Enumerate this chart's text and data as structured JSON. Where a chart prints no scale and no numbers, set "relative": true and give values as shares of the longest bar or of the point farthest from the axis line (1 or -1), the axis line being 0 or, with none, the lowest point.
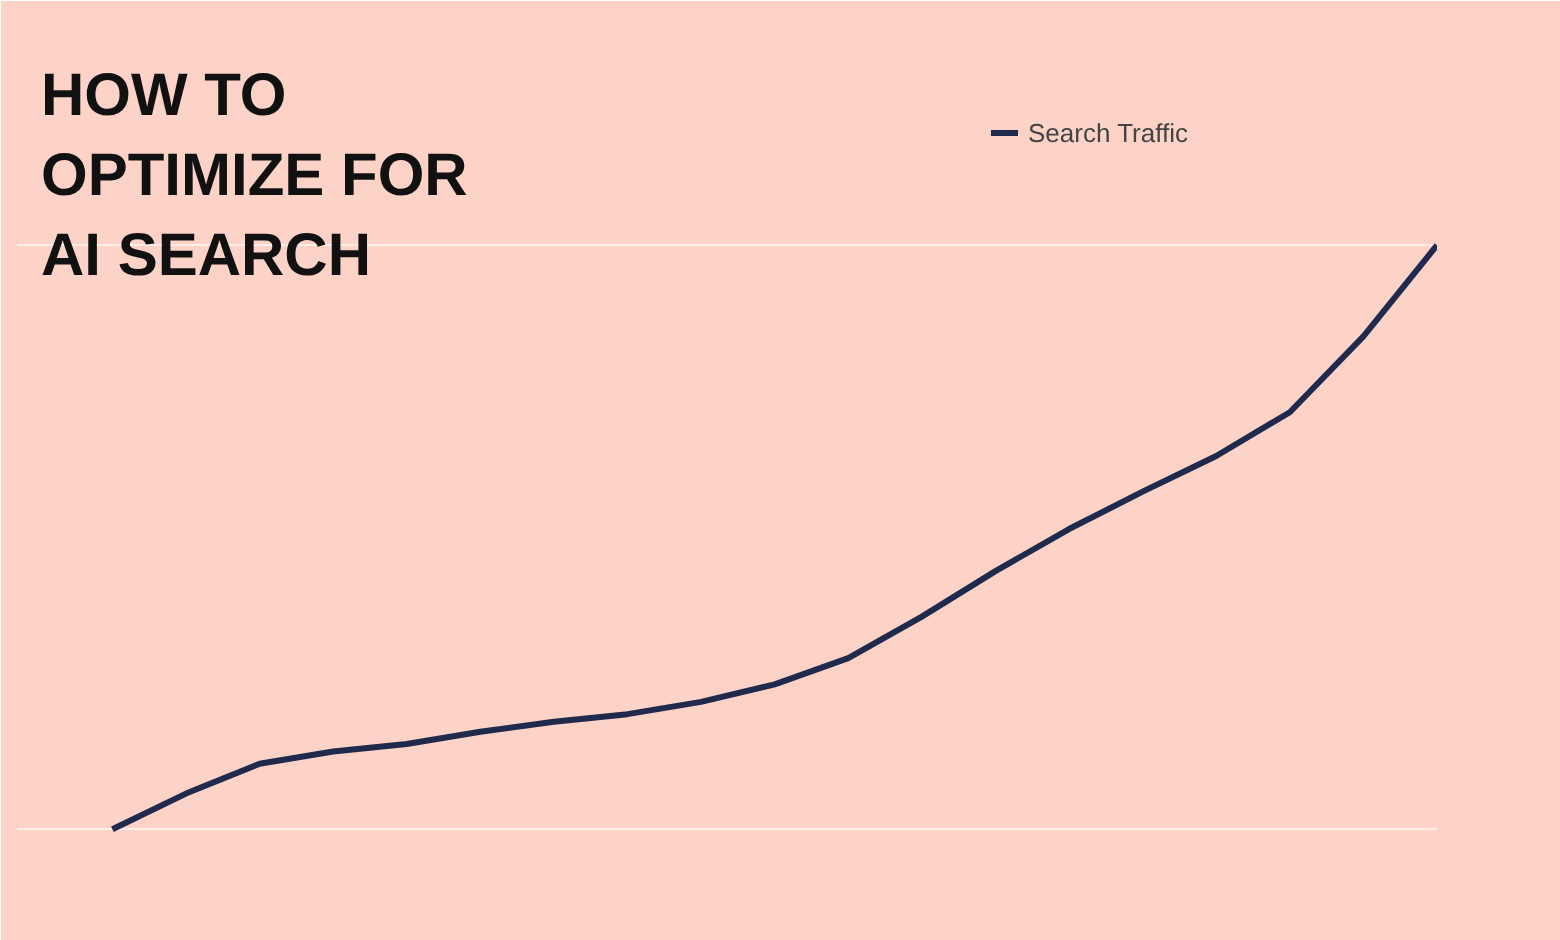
{
  "chart_data": {
    "type": "line",
    "title": "HOW TO OPTIMIZE FOR AI SEARCH",
    "relative": true,
    "categories": [
      null,
      null,
      null,
      null,
      null,
      null,
      null,
      null,
      null,
      null,
      null,
      null,
      null,
      null,
      null,
      null,
      null,
      null,
      null
    ],
    "series": [
      {
        "name": "Search Traffic",
        "color": "#1f2a4d",
        "values": [
          0,
          0.061,
          0.112,
          0.133,
          0.146,
          0.167,
          0.184,
          0.197,
          0.218,
          0.248,
          0.293,
          0.364,
          0.442,
          0.514,
          0.578,
          0.639,
          0.714,
          0.844,
          1
        ]
      }
    ],
    "grid": "y",
    "legend": "top right",
    "marker": "none",
    "line_style": "solid",
    "tick_labels": false
  }
}
